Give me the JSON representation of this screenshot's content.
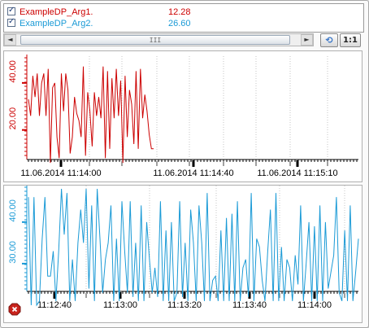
{
  "legend": {
    "items": [
      {
        "name": "ExampleDP_Arg1.",
        "value": "12.28",
        "color": "#cc0000",
        "checked": true
      },
      {
        "name": "ExampleDP_Arg2.",
        "value": "26.60",
        "color": "#1a9ad6",
        "checked": true
      }
    ]
  },
  "scrollbar": {
    "left_arrow": "◄",
    "right_arrow": "►",
    "grip": "III"
  },
  "toolbar": {
    "nav_label": "►",
    "sync_icon": "sync-icon",
    "one_to_one_label": "1:1"
  },
  "status_icon": "stop-icon",
  "chart_data": [
    {
      "type": "line",
      "series": [
        {
          "name": "ExampleDP_Arg1.",
          "color": "#cc0000",
          "values": [
            33,
            26,
            43,
            34,
            44,
            26,
            40,
            44,
            26,
            46,
            6,
            38,
            40,
            17,
            8,
            44,
            28,
            44,
            37,
            10,
            17,
            34,
            27,
            24,
            17,
            47,
            9,
            36,
            28,
            13,
            36,
            26,
            34,
            25,
            47,
            8,
            45,
            12,
            42,
            25,
            46,
            26,
            41,
            6,
            43,
            17,
            37,
            31,
            14,
            45,
            12,
            46,
            25,
            35,
            28,
            18,
            12,
            12
          ]
        }
      ],
      "ylim": [
        5,
        50
      ],
      "y_ticks": [
        20,
        40
      ],
      "y_tick_labels": [
        "20.00",
        "40.00"
      ],
      "x_tick_labels": [
        "11.06.2014 11:14:00",
        "11.06.2014 11:14:40",
        "11.06.2014 11:15:10"
      ],
      "grid": "vertical-dotted"
    },
    {
      "type": "line",
      "series": [
        {
          "name": "ExampleDP_Arg2.",
          "color": "#1a9ad6",
          "values": [
            46,
            20,
            46,
            20,
            21,
            36,
            46,
            27,
            27,
            33,
            21,
            33,
            48,
            37,
            47,
            21,
            31,
            21,
            35,
            43,
            35,
            48,
            24,
            44,
            21,
            48,
            36,
            23,
            31,
            35,
            44,
            21,
            36,
            21,
            45,
            33,
            23,
            45,
            22,
            35,
            21,
            44,
            21,
            40,
            31,
            23,
            29,
            22,
            45,
            21,
            38,
            21,
            40,
            21,
            23,
            45,
            22,
            35,
            21,
            43,
            35,
            21,
            44,
            35,
            21,
            47,
            21,
            26,
            27,
            21,
            38,
            21,
            41,
            21,
            42,
            21,
            45,
            21,
            29,
            31,
            22,
            47,
            21,
            36,
            34,
            26,
            21,
            33,
            43,
            21,
            47,
            21,
            34,
            21,
            31,
            29,
            21,
            32,
            25,
            44,
            21,
            30,
            40,
            21,
            39,
            21,
            44,
            21,
            40,
            24,
            28,
            32,
            46,
            23,
            21,
            38,
            21,
            44,
            21,
            28,
            36
          ]
        }
      ],
      "ylim": [
        20,
        48
      ],
      "y_ticks": [
        30,
        40
      ],
      "y_tick_labels": [
        "30.00",
        "40.00"
      ],
      "x_tick_labels": [
        "11:12:40",
        "11:13:00",
        "11:13:20",
        "11:13:40",
        "11:14:00"
      ],
      "grid": "vertical-dotted"
    }
  ]
}
